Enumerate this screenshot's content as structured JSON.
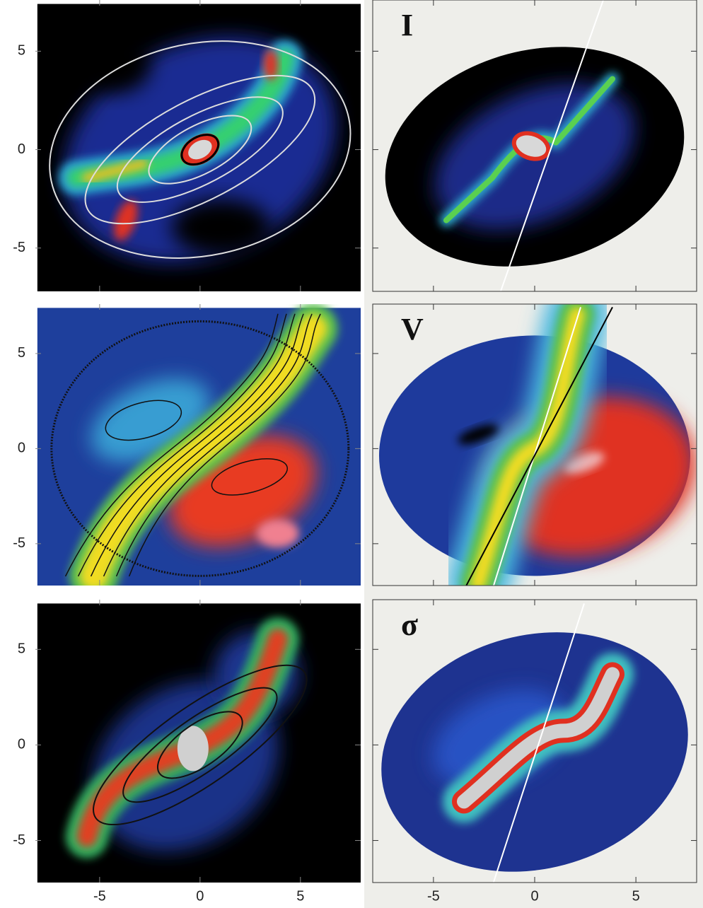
{
  "chart_data": [
    {
      "type": "image",
      "xlim": [
        -8.2,
        8
      ],
      "ylim": [
        -7.2,
        7.6
      ],
      "xticks": [
        -5,
        0,
        5
      ],
      "yticks": [
        -5,
        0,
        5
      ]
    },
    {
      "type": "image",
      "xlim": [
        -8.2,
        8
      ],
      "ylim": [
        -7.2,
        7.6
      ],
      "xticks": [
        -5,
        0,
        5
      ],
      "yticks": [
        -5,
        0,
        5
      ]
    },
    {
      "type": "image",
      "xlim": [
        -8.2,
        8
      ],
      "ylim": [
        -7.2,
        7.6
      ],
      "xticks": [
        -5,
        0,
        5
      ],
      "yticks": [
        -5,
        0,
        5
      ]
    },
    {
      "type": "image",
      "label": "I",
      "xlim": [
        -8,
        8
      ],
      "ylim": [
        -7.2,
        7.6
      ],
      "xticks": [
        -5,
        0,
        5
      ],
      "yticks": [
        -5,
        0,
        5
      ]
    },
    {
      "type": "image",
      "label": "V",
      "xlim": [
        -8,
        8
      ],
      "ylim": [
        -7.2,
        7.6
      ],
      "xticks": [
        -5,
        0,
        5
      ],
      "yticks": [
        -5,
        0,
        5
      ]
    },
    {
      "type": "image",
      "label": "σ",
      "xlim": [
        -8,
        8
      ],
      "ylim": [
        -7.2,
        7.6
      ],
      "xticks": [
        -5,
        0,
        5
      ],
      "yticks": [
        -5,
        0,
        5
      ]
    }
  ]
}
